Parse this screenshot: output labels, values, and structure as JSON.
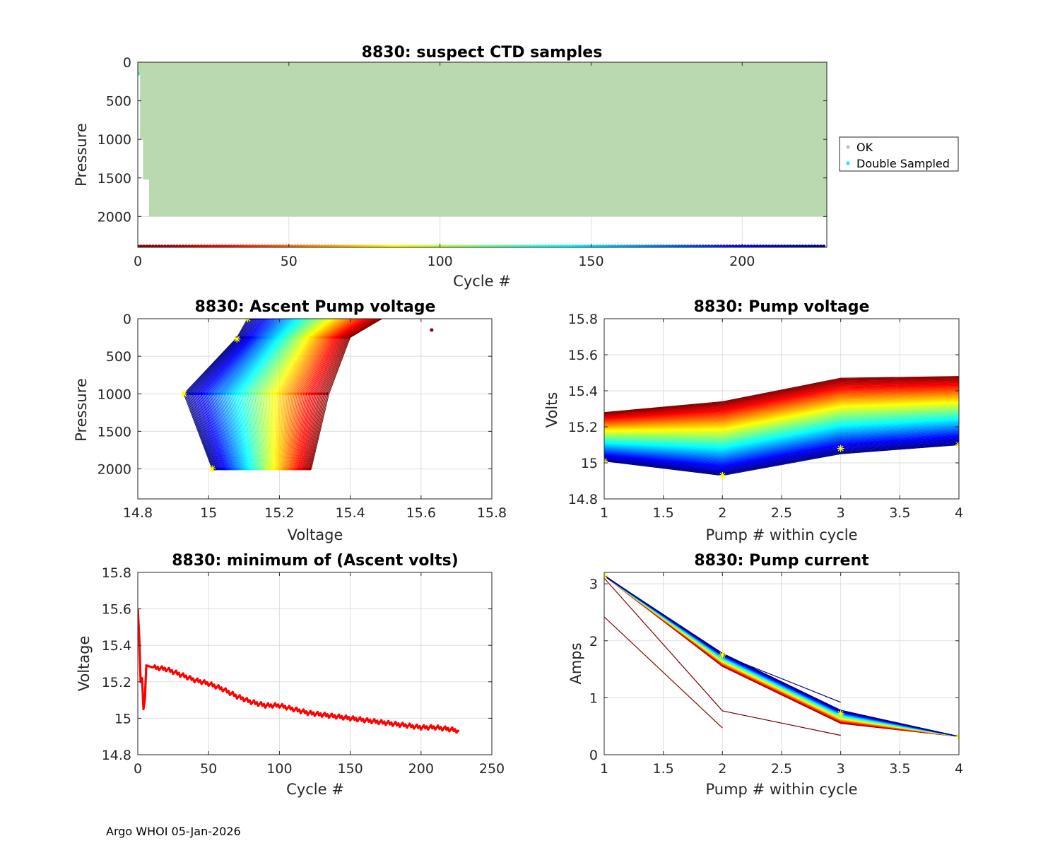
{
  "footer": "Argo WHOI 05-Jan-2026",
  "colors": {
    "ok": "#bbd9b0",
    "ok_marker": "#c0c0c0",
    "double": "#22e5e5",
    "red": "#ff0000",
    "yellow": "#ffff00"
  },
  "chart_data": [
    {
      "id": "suspect",
      "type": "scatter",
      "title": "8830: suspect CTD samples",
      "xlabel": "Cycle #",
      "ylabel": "Pressure",
      "xlim": [
        0,
        228
      ],
      "ylim": [
        2400,
        0
      ],
      "xticks": [
        0,
        50,
        100,
        150,
        200
      ],
      "yticks": [
        0,
        500,
        1000,
        1500,
        2000
      ],
      "grid": true,
      "legend_position": "outside-right",
      "legend": [
        "OK",
        "Double Sampled"
      ],
      "profile_depths": [
        {
          "cycles": [
            0,
            1
          ],
          "max": 150
        },
        {
          "cycles": [
            1,
            2
          ],
          "max": 1000
        },
        {
          "cycles": [
            2,
            4
          ],
          "max": 1520
        },
        {
          "cycles": [
            4,
            228
          ],
          "max": 2000
        }
      ],
      "double_sampled": [
        {
          "cycle": 0,
          "pressure": 150
        }
      ],
      "cycle_marker_pressure": 2400,
      "cycle_count": 228
    },
    {
      "id": "ascent",
      "type": "line",
      "title": "8830: Ascent Pump voltage",
      "xlabel": "Voltage",
      "ylabel": "Pressure",
      "xlim": [
        14.8,
        15.8
      ],
      "ylim": [
        2400,
        0
      ],
      "xticks": [
        14.8,
        15,
        15.2,
        15.4,
        15.6,
        15.8
      ],
      "yticks": [
        0,
        500,
        1000,
        1500,
        2000
      ],
      "grid": true,
      "pressures": [
        2000,
        1000,
        250,
        0
      ],
      "v2000_range": [
        15.01,
        15.29
      ],
      "v1000_range": [
        14.93,
        15.34
      ],
      "v250_range": [
        15.08,
        15.4
      ],
      "v0_range": [
        15.11,
        15.49
      ],
      "outlier": {
        "voltage": 15.63,
        "pressure": 150
      },
      "min_markers": [
        {
          "voltage": 15.01,
          "pressure": 2000
        },
        {
          "voltage": 14.93,
          "pressure": 1000
        },
        {
          "voltage": 15.08,
          "pressure": 270
        },
        {
          "voltage": 15.11,
          "pressure": 0
        }
      ]
    },
    {
      "id": "pumpv",
      "type": "line",
      "title": "8830: Pump voltage",
      "xlabel": "Pump # within cycle",
      "ylabel": "Volts",
      "xlim": [
        1,
        4
      ],
      "ylim": [
        14.8,
        15.8
      ],
      "xticks": [
        1,
        1.5,
        2,
        2.5,
        3,
        3.5,
        4
      ],
      "yticks": [
        14.8,
        15,
        15.2,
        15.4,
        15.6,
        15.8
      ],
      "grid": true,
      "p1_range": [
        15.01,
        15.28
      ],
      "p2_range": [
        14.93,
        15.34
      ],
      "p3_range": [
        15.05,
        15.47
      ],
      "p4_range": [
        15.1,
        15.48
      ],
      "min_markers": [
        {
          "pump": 1,
          "volts": 15.01
        },
        {
          "pump": 2,
          "volts": 14.93
        },
        {
          "pump": 3,
          "volts": 15.08
        },
        {
          "pump": 4,
          "volts": 15.1
        }
      ]
    },
    {
      "id": "minvolt",
      "type": "line",
      "title": "8830: minimum of (Ascent volts)",
      "xlabel": "Cycle #",
      "ylabel": "Voltage",
      "xlim": [
        0,
        250
      ],
      "ylim": [
        14.8,
        15.8
      ],
      "xticks": [
        0,
        50,
        100,
        150,
        200,
        250
      ],
      "yticks": [
        14.8,
        15,
        15.2,
        15.4,
        15.6,
        15.8
      ],
      "grid": true,
      "x": [
        0,
        1,
        2,
        3,
        4,
        5,
        6,
        10,
        20,
        30,
        40,
        50,
        60,
        70,
        80,
        90,
        100,
        110,
        120,
        130,
        140,
        150,
        160,
        170,
        180,
        190,
        200,
        210,
        220,
        227
      ],
      "y": [
        15.6,
        15.45,
        15.2,
        15.22,
        15.05,
        15.1,
        15.29,
        15.28,
        15.27,
        15.24,
        15.21,
        15.19,
        15.16,
        15.12,
        15.09,
        15.07,
        15.07,
        15.05,
        15.03,
        15.02,
        15.01,
        15.0,
        14.99,
        14.98,
        14.97,
        14.96,
        14.95,
        14.95,
        14.94,
        14.93
      ]
    },
    {
      "id": "current",
      "type": "line",
      "title": "8830: Pump current",
      "xlabel": "Pump # within cycle",
      "ylabel": "Amps",
      "xlim": [
        1,
        4
      ],
      "ylim": [
        0,
        3.2
      ],
      "xticks": [
        1,
        1.5,
        2,
        2.5,
        3,
        3.5,
        4
      ],
      "yticks": [
        0,
        1,
        2,
        3
      ],
      "grid": true,
      "main": {
        "p1": 3.14,
        "p2_range": [
          1.55,
          1.78
        ],
        "p3_range": [
          0.55,
          0.78
        ],
        "p4": 0.32
      },
      "outliers": [
        {
          "x": [
            1,
            2
          ],
          "y": [
            2.42,
            0.47
          ]
        },
        {
          "x": [
            1,
            2,
            3
          ],
          "y": [
            3.1,
            0.77,
            0.34
          ]
        },
        {
          "x": [
            1,
            2,
            3
          ],
          "y": [
            3.15,
            1.75,
            0.92
          ]
        }
      ],
      "min_markers": [
        {
          "pump": 1,
          "amps": 3.14
        },
        {
          "pump": 2,
          "amps": 1.75
        },
        {
          "pump": 3,
          "amps": 0.72
        },
        {
          "pump": 4,
          "amps": 0.32
        }
      ]
    }
  ]
}
